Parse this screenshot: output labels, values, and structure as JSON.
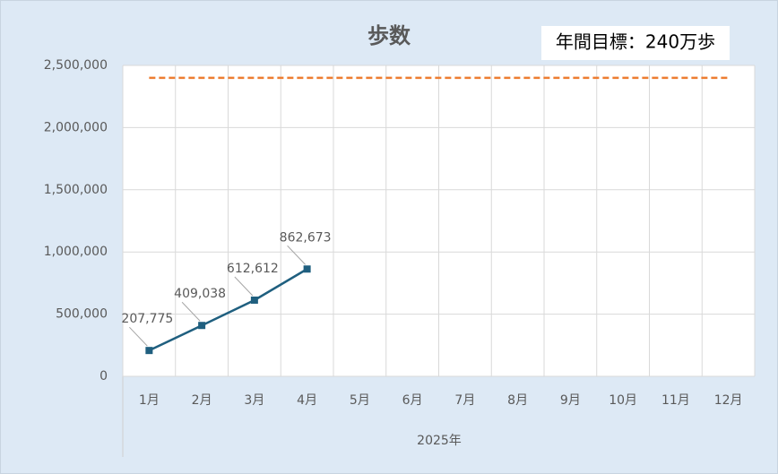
{
  "chart_data": {
    "type": "line",
    "title": "歩数",
    "annotation": "年間目標：240万歩",
    "xlabel": "2025年",
    "categories": [
      "1月",
      "2月",
      "3月",
      "4月",
      "5月",
      "6月",
      "7月",
      "8月",
      "9月",
      "10月",
      "11月",
      "12月"
    ],
    "series": [
      {
        "color": "#1f5f7f",
        "values": [
          207775,
          409038,
          612612,
          862673,
          null,
          null,
          null,
          null,
          null,
          null,
          null,
          null
        ],
        "value_labels": [
          "207,775",
          "409,038",
          "612,612",
          "862,673",
          null,
          null,
          null,
          null,
          null,
          null,
          null,
          null
        ]
      }
    ],
    "target": 2400000,
    "target_color": "#ed7d31",
    "ylim": [
      0,
      2500000
    ],
    "yticks": [
      0,
      {
        "value": 500000,
        "label": "500,000"
      },
      {
        "value": 1000000,
        "label": "1,000,000"
      },
      {
        "value": 1500000,
        "label": "1,500,000"
      },
      {
        "value": 2000000,
        "label": "2,000,000"
      },
      {
        "value": 2500000,
        "label": "2,500,000"
      }
    ],
    "grid": true
  }
}
